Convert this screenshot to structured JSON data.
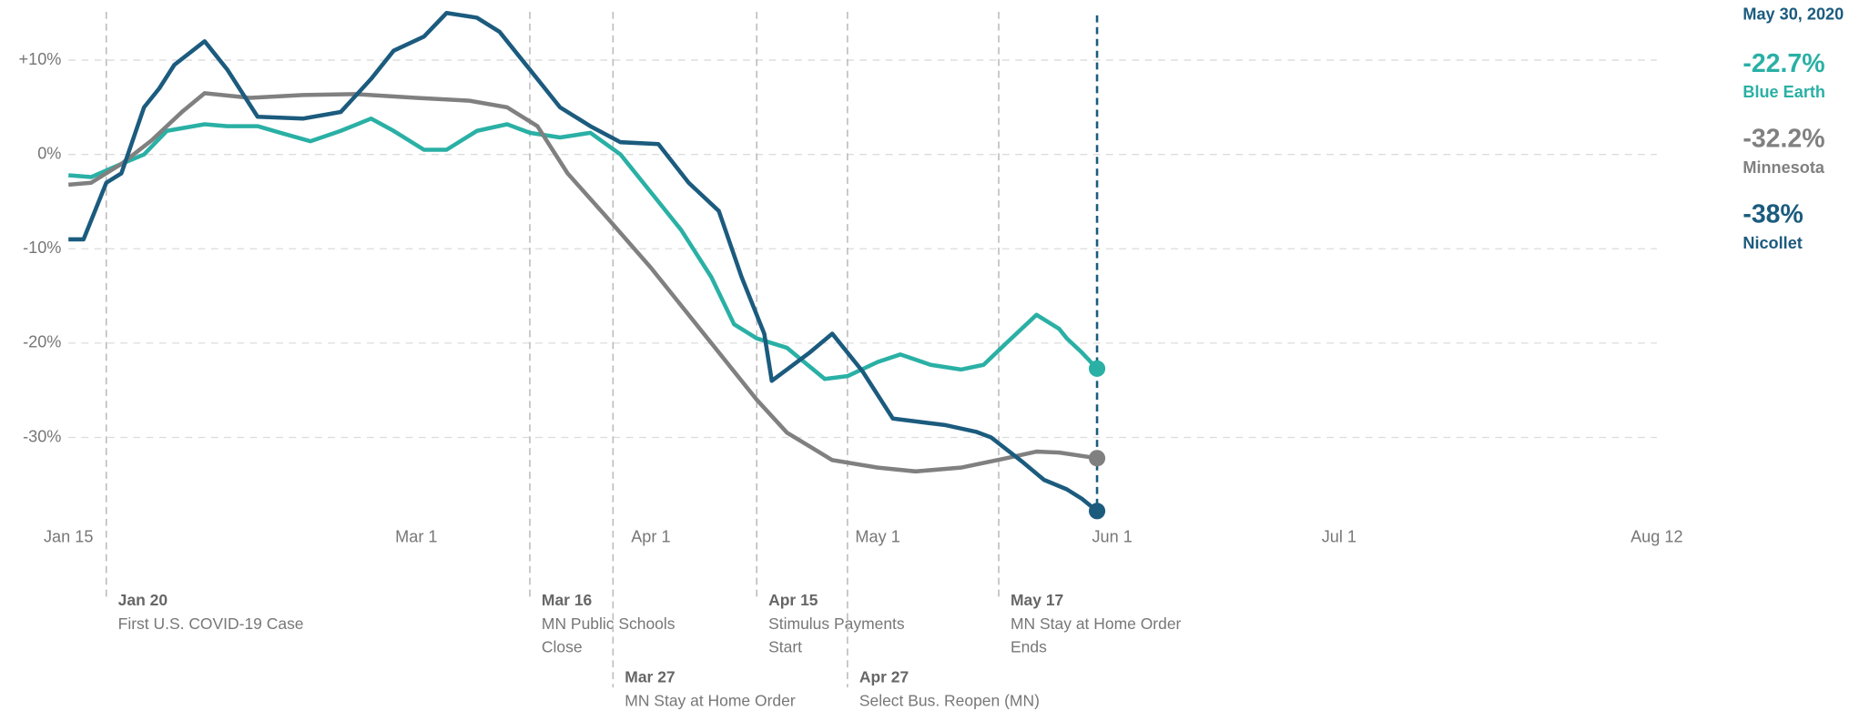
{
  "chart_data": {
    "type": "line",
    "current_date": "May 30, 2020",
    "xlim": [
      "Jan 15",
      "Aug 12"
    ],
    "xticks": [
      "Jan 15",
      "Mar 1",
      "Apr 1",
      "May 1",
      "Jun 1",
      "Jul 1",
      "Aug 12"
    ],
    "ylim": [
      -40,
      15
    ],
    "yticks": [
      {
        "value": -30,
        "label": "-30%"
      },
      {
        "value": -20,
        "label": "-20%"
      },
      {
        "value": -10,
        "label": "-10%"
      },
      {
        "value": 0,
        "label": "0%"
      },
      {
        "value": 10,
        "label": "+10%"
      }
    ],
    "grid": true,
    "series": [
      {
        "name": "Blue Earth",
        "color": "#2ab0a5",
        "x": [
          "Jan 15",
          "Jan 18",
          "Jan 22",
          "Jan 25",
          "Jan 28",
          "Feb 2",
          "Feb 5",
          "Feb 9",
          "Feb 12",
          "Feb 16",
          "Feb 20",
          "Feb 24",
          "Feb 27",
          "Mar 2",
          "Mar 5",
          "Mar 9",
          "Mar 13",
          "Mar 16",
          "Mar 20",
          "Mar 24",
          "Mar 28",
          "Apr 1",
          "Apr 5",
          "Apr 9",
          "Apr 12",
          "Apr 15",
          "Apr 19",
          "Apr 24",
          "Apr 27",
          "May 1",
          "May 4",
          "May 8",
          "May 12",
          "May 15",
          "May 18",
          "May 22",
          "May 25",
          "May 26",
          "May 28",
          "May 30"
        ],
        "values": [
          -2.2,
          -2.4,
          -1,
          0,
          2.5,
          3.2,
          3,
          3,
          2.3,
          1.4,
          2.5,
          3.8,
          2.5,
          0.5,
          0.5,
          2.5,
          3.2,
          2.3,
          1.8,
          2.3,
          0,
          -4,
          -8,
          -13,
          -18,
          -19.5,
          -20.5,
          -23.8,
          -23.5,
          -22,
          -21.2,
          -22.3,
          -22.8,
          -22.3,
          -20,
          -17,
          -18.5,
          -19.5,
          -21,
          -22.7
        ],
        "value_labels": [
          null,
          null,
          null,
          null,
          null,
          null,
          null,
          null,
          null,
          null,
          null,
          null,
          null,
          null,
          null,
          null,
          null,
          null,
          null,
          null,
          null,
          null,
          null,
          null,
          null,
          null,
          null,
          null,
          null,
          null,
          null,
          null,
          null,
          null,
          null,
          null,
          null,
          null,
          null,
          "-22.7%"
        ]
      },
      {
        "name": "Minnesota",
        "color": "#808080",
        "x": [
          "Jan 15",
          "Jan 18",
          "Jan 22",
          "Jan 26",
          "Jan 30",
          "Feb 2",
          "Feb 8",
          "Feb 15",
          "Feb 22",
          "Mar 1",
          "Mar 8",
          "Mar 13",
          "Mar 17",
          "Mar 21",
          "Mar 26",
          "Apr 1",
          "Apr 8",
          "Apr 15",
          "Apr 19",
          "Apr 25",
          "May 1",
          "May 6",
          "May 12",
          "May 18",
          "May 22",
          "May 25",
          "May 30"
        ],
        "values": [
          -3.2,
          -3,
          -1,
          1.5,
          4.5,
          6.5,
          6,
          6.3,
          6.4,
          6,
          5.7,
          5,
          3,
          -2,
          -6.5,
          -12,
          -19,
          -26,
          -29.5,
          -32.4,
          -33.2,
          -33.6,
          -33.2,
          -32.2,
          -31.5,
          -31.6,
          -32.2
        ],
        "value_labels": [
          null,
          null,
          null,
          null,
          null,
          null,
          null,
          null,
          null,
          null,
          null,
          null,
          null,
          null,
          null,
          null,
          null,
          null,
          null,
          null,
          null,
          null,
          null,
          null,
          null,
          null,
          "-32.2%"
        ]
      },
      {
        "name": "Nicollet",
        "color": "#1b5b7e",
        "x": [
          "Jan 15",
          "Jan 17",
          "Jan 20",
          "Jan 22",
          "Jan 25",
          "Jan 27",
          "Jan 29",
          "Feb 2",
          "Feb 5",
          "Feb 9",
          "Feb 15",
          "Feb 20",
          "Feb 24",
          "Feb 27",
          "Mar 2",
          "Mar 5",
          "Mar 9",
          "Mar 12",
          "Mar 16",
          "Mar 20",
          "Mar 24",
          "Mar 28",
          "Apr 2",
          "Apr 6",
          "Apr 10",
          "Apr 13",
          "Apr 16",
          "Apr 17",
          "Apr 22",
          "Apr 25",
          "Apr 29",
          "May 3",
          "May 6",
          "May 10",
          "May 14",
          "May 16",
          "May 20",
          "May 23",
          "May 26",
          "May 28",
          "May 30"
        ],
        "values": [
          -9,
          -9,
          -3,
          -2,
          5,
          7,
          9.5,
          12,
          9,
          4,
          3.8,
          4.5,
          8,
          11,
          12.5,
          15,
          14.5,
          13,
          9,
          5,
          3,
          1.3,
          1.1,
          -3,
          -6,
          -13,
          -19,
          -24,
          -21,
          -19,
          -23,
          -28,
          -28.3,
          -28.7,
          -29.4,
          -30,
          -32.5,
          -34.5,
          -35.5,
          -36.5,
          -37.8
        ],
        "value_labels": [
          null,
          null,
          null,
          null,
          null,
          null,
          null,
          null,
          null,
          null,
          null,
          null,
          null,
          null,
          null,
          null,
          null,
          null,
          null,
          null,
          null,
          null,
          null,
          null,
          null,
          null,
          null,
          null,
          null,
          null,
          null,
          null,
          null,
          null,
          null,
          null,
          null,
          null,
          null,
          null,
          "-38%"
        ]
      }
    ],
    "annotations": [
      {
        "date": "Jan 20",
        "title": "Jan 20",
        "lines": [
          "First U.S. COVID-19 Case"
        ],
        "row": 1
      },
      {
        "date": "Mar 16",
        "title": "Mar 16",
        "lines": [
          "MN Public Schools",
          "Close"
        ],
        "row": 1
      },
      {
        "date": "Mar 27",
        "title": "Mar 27",
        "lines": [
          "MN Stay at Home Order"
        ],
        "row": 2
      },
      {
        "date": "Apr 15",
        "title": "Apr 15",
        "lines": [
          "Stimulus Payments",
          "Start"
        ],
        "row": 1
      },
      {
        "date": "Apr 27",
        "title": "Apr 27",
        "lines": [
          "Select Bus. Reopen (MN)"
        ],
        "row": 2
      },
      {
        "date": "May 17",
        "title": "May 17",
        "lines": [
          "MN Stay at Home Order",
          "Ends"
        ],
        "row": 1
      }
    ]
  }
}
